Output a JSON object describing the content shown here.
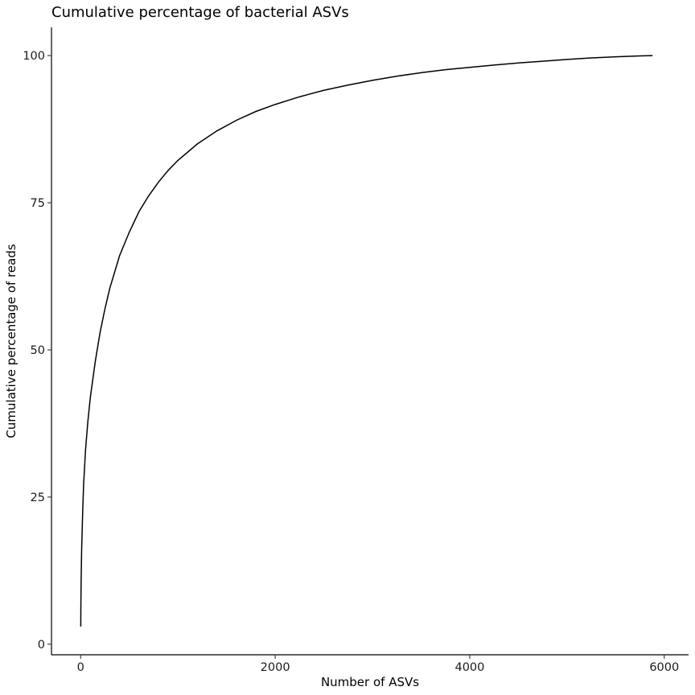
{
  "chart_data": {
    "type": "line",
    "title": "Cumulative percentage of bacterial ASVs",
    "xlabel": "Number of ASVs",
    "ylabel": "Cumulative percentage of reads",
    "xlim": [
      -300,
      6250
    ],
    "ylim": [
      -1.8,
      104.8
    ],
    "xticks": [
      0,
      2000,
      4000,
      6000
    ],
    "xtick_labels": [
      "0",
      "2000",
      "4000",
      "6000"
    ],
    "yticks": [
      0,
      25,
      50,
      75,
      100
    ],
    "ytick_labels": [
      "0",
      "25",
      "50",
      "75",
      "100"
    ],
    "grid": false,
    "legend": "none",
    "line_color": "#000000",
    "series": [
      {
        "x": [
          1,
          2,
          5,
          10,
          20,
          30,
          50,
          75,
          100,
          150,
          200,
          250,
          300,
          400,
          500,
          600,
          700,
          800,
          900,
          1000,
          1200,
          1400,
          1600,
          1800,
          2000,
          2250,
          2500,
          2750,
          3000,
          3250,
          3500,
          3750,
          4000,
          4250,
          4500,
          4750,
          5000,
          5250,
          5500,
          5750,
          5880
        ],
        "y": [
          3,
          6,
          11,
          16,
          22,
          27,
          33,
          38,
          42,
          48,
          53,
          57,
          60.5,
          66,
          70,
          73.5,
          76.2,
          78.5,
          80.5,
          82.2,
          85,
          87.2,
          89,
          90.5,
          91.7,
          93,
          94.1,
          95,
          95.8,
          96.5,
          97.1,
          97.6,
          98,
          98.4,
          98.75,
          99.05,
          99.35,
          99.6,
          99.8,
          99.95,
          100
        ]
      }
    ]
  }
}
